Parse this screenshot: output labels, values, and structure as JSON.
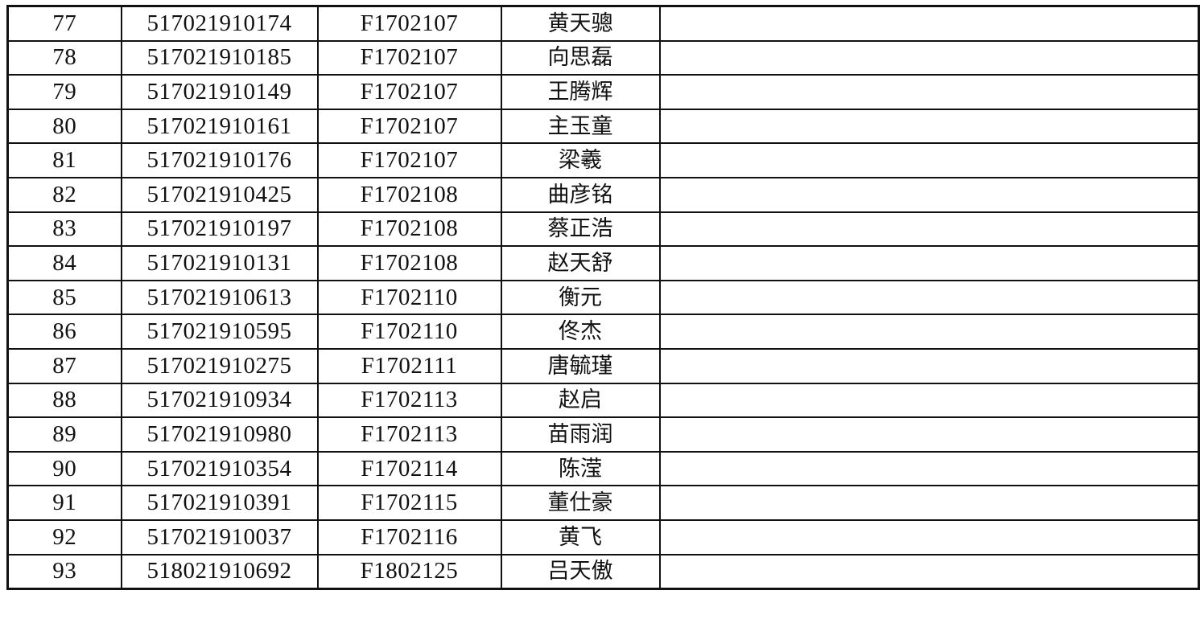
{
  "rows": [
    {
      "no": "77",
      "student_id": "517021910174",
      "class": "F1702107",
      "name": "黄天骢",
      "remark": ""
    },
    {
      "no": "78",
      "student_id": "517021910185",
      "class": "F1702107",
      "name": "向思磊",
      "remark": ""
    },
    {
      "no": "79",
      "student_id": "517021910149",
      "class": "F1702107",
      "name": "王腾辉",
      "remark": ""
    },
    {
      "no": "80",
      "student_id": "517021910161",
      "class": "F1702107",
      "name": "主玉童",
      "remark": ""
    },
    {
      "no": "81",
      "student_id": "517021910176",
      "class": "F1702107",
      "name": "梁羲",
      "remark": ""
    },
    {
      "no": "82",
      "student_id": "517021910425",
      "class": "F1702108",
      "name": "曲彦铭",
      "remark": ""
    },
    {
      "no": "83",
      "student_id": "517021910197",
      "class": "F1702108",
      "name": "蔡正浩",
      "remark": ""
    },
    {
      "no": "84",
      "student_id": "517021910131",
      "class": "F1702108",
      "name": "赵天舒",
      "remark": ""
    },
    {
      "no": "85",
      "student_id": "517021910613",
      "class": "F1702110",
      "name": "衡元",
      "remark": ""
    },
    {
      "no": "86",
      "student_id": "517021910595",
      "class": "F1702110",
      "name": "佟杰",
      "remark": ""
    },
    {
      "no": "87",
      "student_id": "517021910275",
      "class": "F1702111",
      "name": "唐毓瑾",
      "remark": ""
    },
    {
      "no": "88",
      "student_id": "517021910934",
      "class": "F1702113",
      "name": "赵启",
      "remark": ""
    },
    {
      "no": "89",
      "student_id": "517021910980",
      "class": "F1702113",
      "name": "苗雨润",
      "remark": ""
    },
    {
      "no": "90",
      "student_id": "517021910354",
      "class": "F1702114",
      "name": "陈滢",
      "remark": ""
    },
    {
      "no": "91",
      "student_id": "517021910391",
      "class": "F1702115",
      "name": "董仕豪",
      "remark": ""
    },
    {
      "no": "92",
      "student_id": "517021910037",
      "class": "F1702116",
      "name": "黄飞",
      "remark": ""
    },
    {
      "no": "93",
      "student_id": "518021910692",
      "class": "F1802125",
      "name": "吕天傲",
      "remark": ""
    }
  ]
}
